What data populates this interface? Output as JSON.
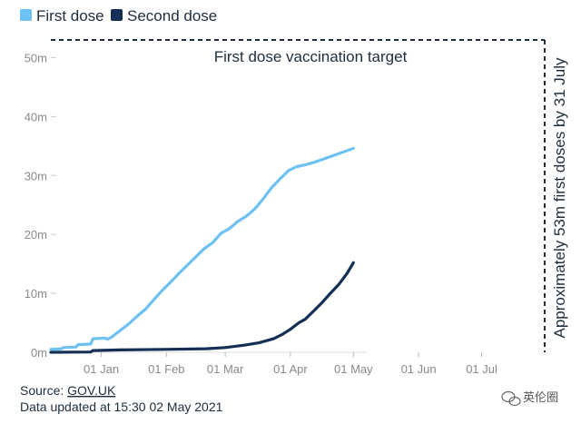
{
  "legend": {
    "first_label": "First dose",
    "second_label": "Second dose"
  },
  "annotations": {
    "target_text": "First dose vaccination target",
    "side_text": "Approximately 53m first doses by 31 July"
  },
  "source": {
    "prefix": "Source: ",
    "link": "GOV.UK",
    "updated": "Data updated at 15:30 02 May 2021"
  },
  "watermark": {
    "text": "英伦圈"
  },
  "colors": {
    "first": "#6ec1f3",
    "second": "#142f55",
    "target": "#1f2d3d",
    "grid": "#e6e6e6",
    "tick": "#8a8a8a"
  },
  "chart_data": {
    "type": "line",
    "x_unit": "date",
    "y_unit": "doses (millions)",
    "xlim": [
      "2020-12-08",
      "2021-07-31"
    ],
    "ylim": [
      0,
      53
    ],
    "y_ticks": [
      0,
      10,
      20,
      30,
      40,
      50
    ],
    "y_tick_labels": [
      "0m",
      "10m",
      "20m",
      "30m",
      "40m",
      "50m"
    ],
    "x_ticks": [
      "2021-01-01",
      "2021-02-01",
      "2021-03-01",
      "2021-04-01",
      "2021-05-01",
      "2021-06-01",
      "2021-07-01"
    ],
    "x_tick_labels": [
      "01 Jan",
      "01 Feb",
      "01 Mar",
      "01 Apr",
      "01 May",
      "01 Jun",
      "01 Jul"
    ],
    "target": {
      "value": 53,
      "date": "2021-07-31"
    },
    "legend_position": "top-left",
    "grid": false,
    "series": [
      {
        "name": "First dose",
        "color": "#6ec1f3",
        "points": [
          [
            "2020-12-08",
            0.5
          ],
          [
            "2020-12-13",
            0.6
          ],
          [
            "2020-12-14",
            0.8
          ],
          [
            "2020-12-20",
            0.9
          ],
          [
            "2020-12-21",
            1.3
          ],
          [
            "2020-12-27",
            1.4
          ],
          [
            "2020-12-28",
            2.3
          ],
          [
            "2021-01-03",
            2.4
          ],
          [
            "2021-01-04",
            2.2
          ],
          [
            "2021-01-06",
            2.6
          ],
          [
            "2021-01-10",
            3.7
          ],
          [
            "2021-01-14",
            4.8
          ],
          [
            "2021-01-18",
            6.1
          ],
          [
            "2021-01-22",
            7.3
          ],
          [
            "2021-01-26",
            8.9
          ],
          [
            "2021-01-30",
            10.5
          ],
          [
            "2021-02-03",
            11.9
          ],
          [
            "2021-02-07",
            13.4
          ],
          [
            "2021-02-11",
            14.8
          ],
          [
            "2021-02-15",
            16.2
          ],
          [
            "2021-02-19",
            17.6
          ],
          [
            "2021-02-23",
            18.6
          ],
          [
            "2021-02-27",
            20.2
          ],
          [
            "2021-03-03",
            21.0
          ],
          [
            "2021-03-07",
            22.2
          ],
          [
            "2021-03-11",
            23.1
          ],
          [
            "2021-03-15",
            24.3
          ],
          [
            "2021-03-19",
            26.0
          ],
          [
            "2021-03-23",
            27.9
          ],
          [
            "2021-03-27",
            29.4
          ],
          [
            "2021-03-31",
            30.8
          ],
          [
            "2021-04-04",
            31.5
          ],
          [
            "2021-04-08",
            31.8
          ],
          [
            "2021-04-12",
            32.2
          ],
          [
            "2021-04-16",
            32.7
          ],
          [
            "2021-04-20",
            33.2
          ],
          [
            "2021-04-24",
            33.7
          ],
          [
            "2021-05-01",
            34.6
          ]
        ]
      },
      {
        "name": "Second dose",
        "color": "#142f55",
        "points": [
          [
            "2020-12-08",
            0.0
          ],
          [
            "2020-12-27",
            0.05
          ],
          [
            "2020-12-28",
            0.3
          ],
          [
            "2021-01-10",
            0.4
          ],
          [
            "2021-01-31",
            0.5
          ],
          [
            "2021-02-20",
            0.6
          ],
          [
            "2021-03-01",
            0.8
          ],
          [
            "2021-03-10",
            1.2
          ],
          [
            "2021-03-17",
            1.6
          ],
          [
            "2021-03-24",
            2.3
          ],
          [
            "2021-03-28",
            3.0
          ],
          [
            "2021-04-01",
            3.9
          ],
          [
            "2021-04-05",
            5.0
          ],
          [
            "2021-04-08",
            5.6
          ],
          [
            "2021-04-12",
            7.0
          ],
          [
            "2021-04-16",
            8.4
          ],
          [
            "2021-04-20",
            10.0
          ],
          [
            "2021-04-24",
            11.5
          ],
          [
            "2021-04-28",
            13.4
          ],
          [
            "2021-05-01",
            15.2
          ]
        ]
      }
    ]
  }
}
